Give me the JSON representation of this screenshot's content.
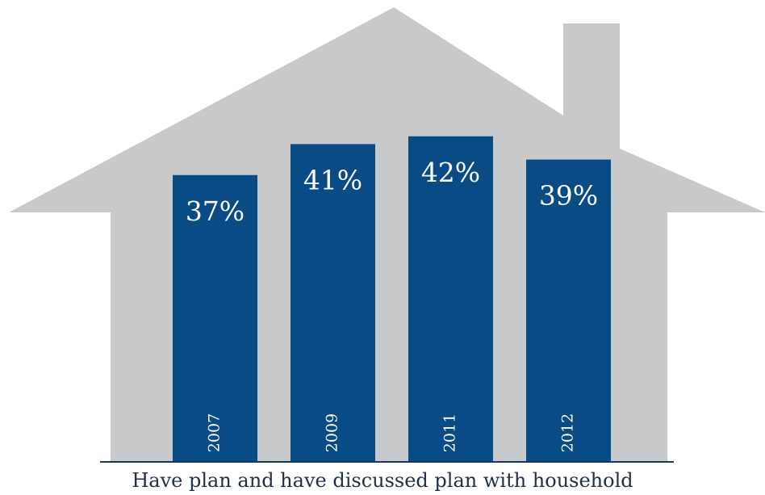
{
  "chart_data": {
    "type": "bar",
    "categories": [
      "2007",
      "2009",
      "2011",
      "2012"
    ],
    "values": [
      37,
      41,
      42,
      39
    ],
    "value_labels": [
      "37%",
      "41%",
      "42%",
      "39%"
    ],
    "xlabel": "Have plan and have discussed plan with household",
    "ylabel": "",
    "title": "",
    "background_shape": "house",
    "colors": {
      "bar": "#084b85",
      "house": "#c8c9cb",
      "baseline": "#0d3a66",
      "text": "#ffffff"
    }
  }
}
